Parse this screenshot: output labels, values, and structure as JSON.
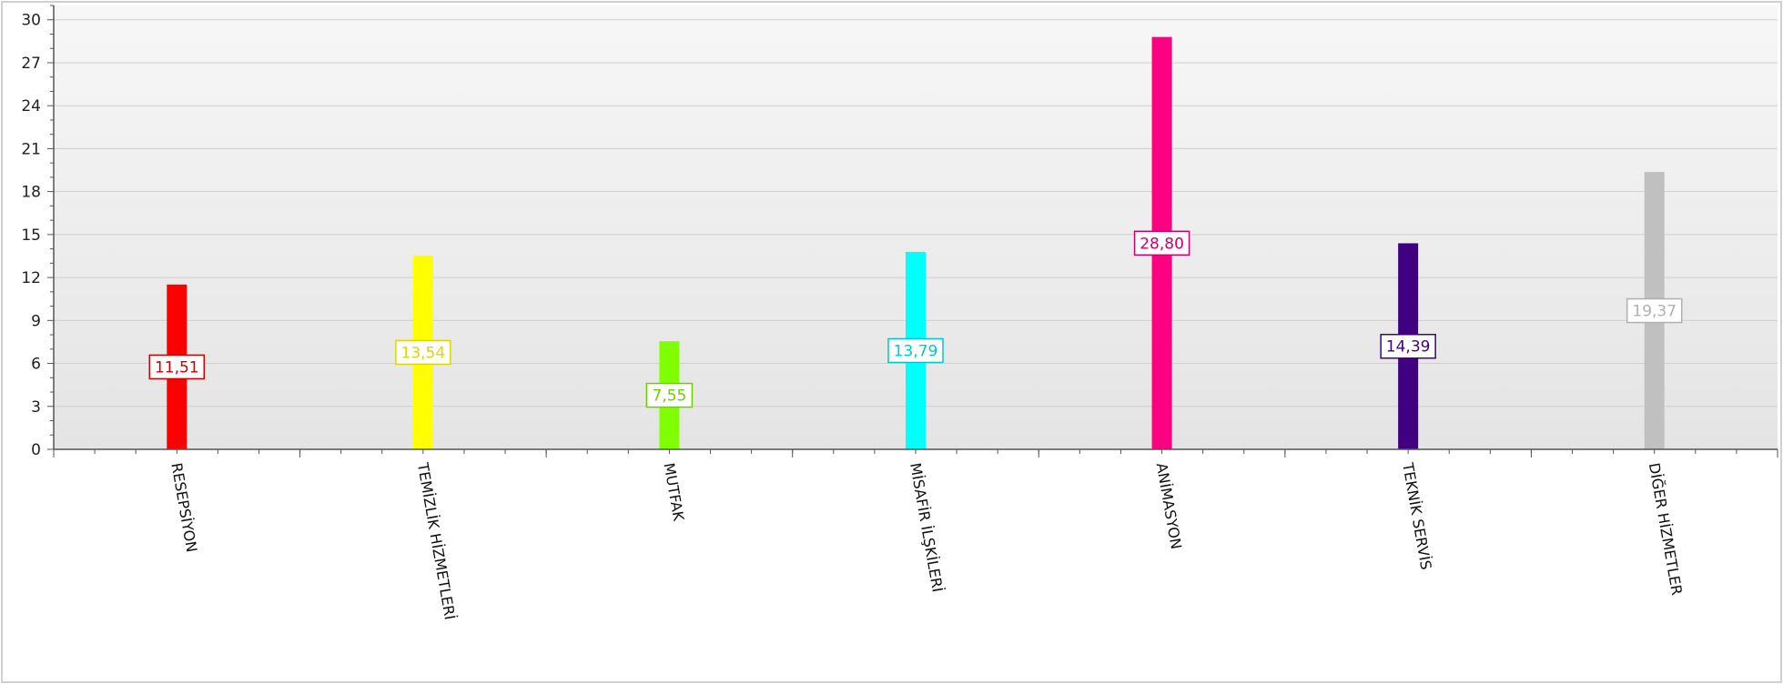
{
  "chart_data": {
    "type": "bar",
    "title": "",
    "xlabel": "",
    "ylabel": "",
    "ylim": [
      0,
      31
    ],
    "yticks": [
      0,
      3,
      6,
      9,
      12,
      15,
      18,
      21,
      24,
      27,
      30
    ],
    "grid": true,
    "legend": "none",
    "categories": [
      "RESEPSİYON",
      "TEMİZLİK HİZMETLERİ",
      "MUTFAK",
      "MİSAFİR İLŞKİLERİ",
      "ANİMASYON",
      "TEKNİK SERVİS",
      "DİĞER HİZMETLER"
    ],
    "values": [
      11.51,
      13.54,
      7.55,
      13.79,
      28.8,
      14.39,
      19.37
    ],
    "value_labels": [
      "11,51",
      "13,54",
      "7,55",
      "13,79",
      "28,80",
      "14,39",
      "19,37"
    ],
    "colors": [
      "#ff0000",
      "#ffff00",
      "#80ff00",
      "#00ffff",
      "#ff0080",
      "#400080",
      "#c0c0c0"
    ],
    "label_colors": [
      "#cc0000",
      "#d8d800",
      "#6ad000",
      "#00c8c8",
      "#cc006a",
      "#400080",
      "#b0b0b0"
    ]
  }
}
